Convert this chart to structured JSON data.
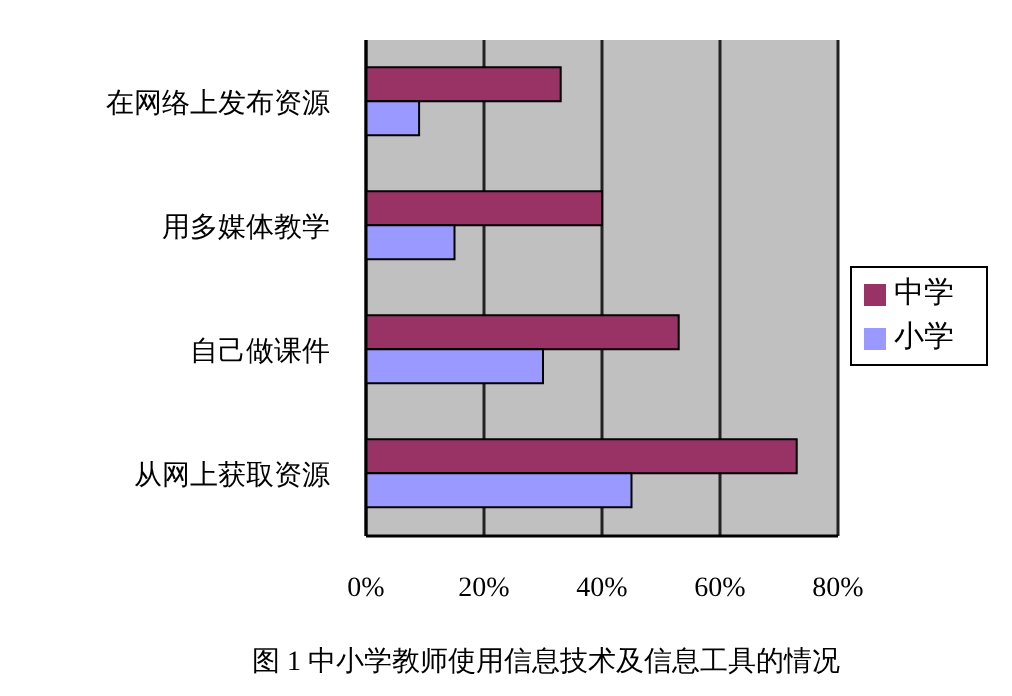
{
  "chart_data": {
    "type": "bar",
    "orientation": "horizontal",
    "title": "图 1 中小学教师使用信息技术及信息工具的情况",
    "categories": [
      "在网络上发布资源",
      "用多媒体教学",
      "自己做课件",
      "从网上获取资源"
    ],
    "series": [
      {
        "name": "中学",
        "color": "#993366",
        "values": [
          33,
          40,
          53,
          73
        ]
      },
      {
        "name": "小学",
        "color": "#9999ff",
        "values": [
          9,
          15,
          30,
          45
        ]
      }
    ],
    "xlim": [
      0,
      80
    ],
    "xticks": [
      {
        "value": 0,
        "label": "0%"
      },
      {
        "value": 20,
        "label": "20%"
      },
      {
        "value": 40,
        "label": "40%"
      },
      {
        "value": 60,
        "label": "60%"
      },
      {
        "value": 80,
        "label": "80%"
      }
    ],
    "grid": "x",
    "legend": "right"
  }
}
